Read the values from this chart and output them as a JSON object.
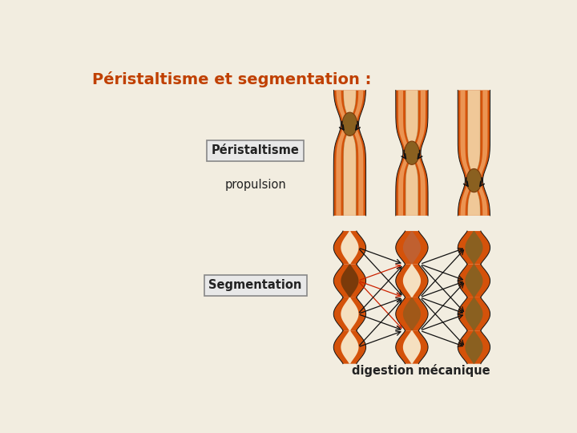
{
  "title": "Péristaltisme et segmentation :",
  "label_peristaltisme": "Péristaltisme",
  "label_propulsion": "propulsion",
  "label_segmentation": "Segmentation",
  "label_digestion": "digestion mécanique",
  "bg_color": "#f2ede0",
  "title_color": "#c04000",
  "orange_dark": "#d4520a",
  "orange_mid": "#e06a20",
  "orange_light": "#f0a060",
  "lumen_light": "#f5e0c0",
  "lumen_peach": "#f0c898",
  "brown_dark": "#7a3a0a",
  "brown_mid": "#a05818",
  "brown_olive": "#8a6020",
  "text_color": "#222222",
  "box_fc": "#e8e8e8",
  "box_ec": "#888888",
  "arrow_color": "#111111",
  "red_arrow": "#cc2200"
}
